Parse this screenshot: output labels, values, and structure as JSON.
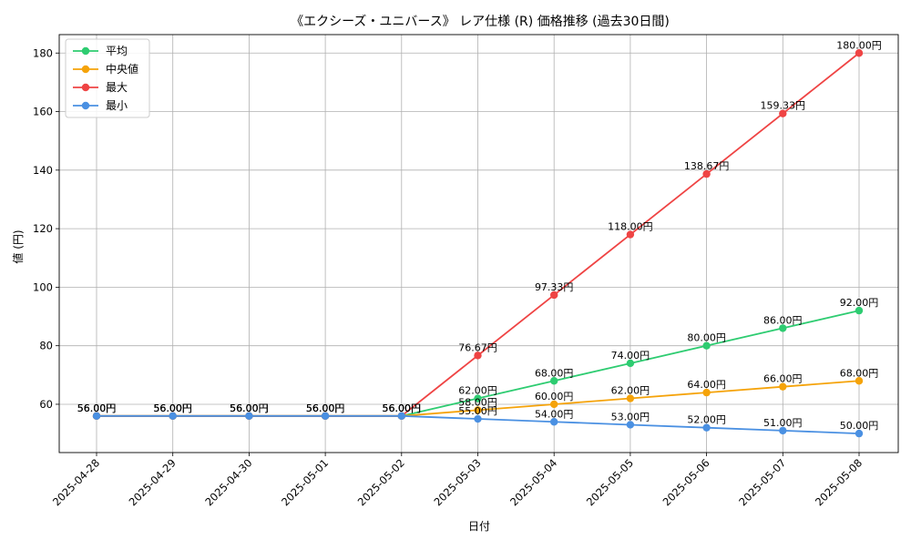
{
  "chart_data": {
    "type": "line",
    "title": "《エクシーズ・ユニバース》 レア仕様 (R) 価格推移 (過去30日間)",
    "xlabel": "日付",
    "ylabel": "値 (円)",
    "ylim": [
      43.5,
      186.3
    ],
    "yticks": [
      60,
      80,
      100,
      120,
      140,
      160,
      180
    ],
    "grid": true,
    "legend_position": "top-left",
    "label_suffix": "円",
    "categories": [
      "2025-04-28",
      "2025-04-29",
      "2025-04-30",
      "2025-05-01",
      "2025-05-02",
      "2025-05-03",
      "2025-05-04",
      "2025-05-05",
      "2025-05-06",
      "2025-05-07",
      "2025-05-08"
    ],
    "series": [
      {
        "name": "平均",
        "color": "#2ecc71",
        "values": [
          56,
          56,
          56,
          56,
          56,
          62,
          68,
          74,
          80,
          86,
          92
        ],
        "labels": [
          "56.00円",
          "56.00円",
          "56.00円",
          "56.00円",
          "56.00円",
          "62.00円",
          "68.00円",
          "74.00円",
          "80.00円",
          "86.00円",
          "92.00円"
        ]
      },
      {
        "name": "中央値",
        "color": "#f5a30a",
        "values": [
          56,
          56,
          56,
          56,
          56,
          58,
          60,
          62,
          64,
          66,
          68
        ],
        "labels": [
          "56.00円",
          "56.00円",
          "56.00円",
          "56.00円",
          "56.00円",
          "58.00円",
          "60.00円",
          "62.00円",
          "64.00円",
          "66.00円",
          "68.00円"
        ]
      },
      {
        "name": "最大",
        "color": "#ef4444",
        "values": [
          56,
          56,
          56,
          56,
          56,
          76.67,
          97.33,
          118,
          138.67,
          159.33,
          180
        ],
        "labels": [
          "56.00円",
          "56.00円",
          "56.00円",
          "56.00円",
          "56.00円",
          "76.67円",
          "97.33円",
          "118.00円",
          "138.67円",
          "159.33円",
          "180.00円"
        ]
      },
      {
        "name": "最小",
        "color": "#4a90e2",
        "values": [
          56,
          56,
          56,
          56,
          56,
          55,
          54,
          53,
          52,
          51,
          50
        ],
        "labels": [
          "56.00円",
          "56.00円",
          "56.00円",
          "56.00円",
          "56.00円",
          "55.00円",
          "54.00円",
          "53.00円",
          "52.00円",
          "51.00円",
          "50.00円"
        ]
      }
    ]
  }
}
